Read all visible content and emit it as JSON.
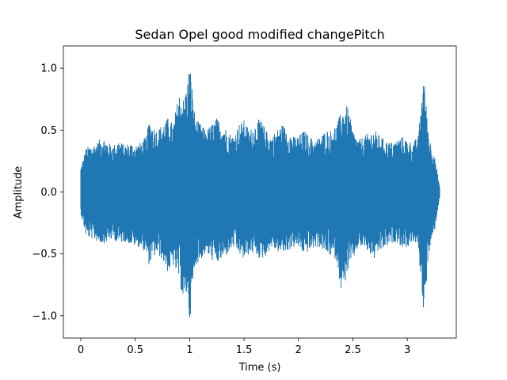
{
  "chart_data": {
    "type": "line",
    "title": "Sedan Opel good modified changePitch",
    "xlabel": "Time (s)",
    "ylabel": "Amplitude",
    "xlim": [
      -0.16,
      3.45
    ],
    "ylim": [
      -1.18,
      1.18
    ],
    "x_ticks": [
      0,
      0.5,
      1,
      1.5,
      2,
      2.5,
      3
    ],
    "x_tick_labels": [
      "0",
      "0.5",
      "1",
      "1.5",
      "2",
      "2.5",
      "3"
    ],
    "y_ticks": [
      -1.0,
      -0.5,
      0.0,
      0.5,
      1.0
    ],
    "y_tick_labels": [
      "−1.0",
      "−0.5",
      "0.0",
      "0.5",
      "1.0"
    ],
    "grid": false,
    "series": [
      {
        "color": "#1f77b4",
        "duration": 3.3,
        "envelope_t": [
          0.0,
          0.05,
          0.1,
          0.15,
          0.2,
          0.25,
          0.3,
          0.35,
          0.4,
          0.45,
          0.5,
          0.55,
          0.6,
          0.63,
          0.65,
          0.7,
          0.75,
          0.8,
          0.85,
          0.9,
          0.95,
          0.98,
          1.0,
          1.05,
          1.1,
          1.15,
          1.2,
          1.25,
          1.3,
          1.35,
          1.4,
          1.45,
          1.5,
          1.55,
          1.6,
          1.65,
          1.7,
          1.75,
          1.8,
          1.85,
          1.9,
          1.95,
          2.0,
          2.05,
          2.1,
          2.15,
          2.2,
          2.25,
          2.3,
          2.35,
          2.4,
          2.45,
          2.5,
          2.55,
          2.6,
          2.65,
          2.7,
          2.75,
          2.8,
          2.85,
          2.9,
          2.95,
          3.0,
          3.05,
          3.1,
          3.15,
          3.2,
          3.25,
          3.3
        ],
        "envelope_max": [
          0.2,
          0.36,
          0.38,
          0.4,
          0.45,
          0.4,
          0.38,
          0.42,
          0.38,
          0.4,
          0.38,
          0.4,
          0.45,
          0.58,
          0.55,
          0.5,
          0.55,
          0.6,
          0.55,
          0.8,
          0.75,
          0.9,
          1.06,
          0.6,
          0.55,
          0.5,
          0.55,
          0.6,
          0.55,
          0.5,
          0.45,
          0.55,
          0.58,
          0.5,
          0.55,
          0.6,
          0.5,
          0.45,
          0.5,
          0.55,
          0.5,
          0.45,
          0.45,
          0.5,
          0.45,
          0.42,
          0.45,
          0.5,
          0.5,
          0.55,
          0.66,
          0.7,
          0.5,
          0.42,
          0.45,
          0.48,
          0.5,
          0.45,
          0.42,
          0.4,
          0.42,
          0.45,
          0.42,
          0.4,
          0.45,
          0.95,
          0.45,
          0.3,
          0.03
        ],
        "envelope_min": [
          -0.18,
          -0.36,
          -0.38,
          -0.4,
          -0.42,
          -0.4,
          -0.38,
          -0.42,
          -0.4,
          -0.42,
          -0.44,
          -0.45,
          -0.5,
          -0.6,
          -0.55,
          -0.5,
          -0.55,
          -0.65,
          -0.6,
          -0.7,
          -0.92,
          -0.8,
          -1.06,
          -0.6,
          -0.55,
          -0.5,
          -0.55,
          -0.58,
          -0.55,
          -0.5,
          -0.45,
          -0.5,
          -0.55,
          -0.5,
          -0.5,
          -0.55,
          -0.52,
          -0.45,
          -0.48,
          -0.5,
          -0.48,
          -0.45,
          -0.45,
          -0.5,
          -0.48,
          -0.45,
          -0.45,
          -0.5,
          -0.52,
          -0.55,
          -0.84,
          -0.65,
          -0.55,
          -0.45,
          -0.45,
          -0.5,
          -0.55,
          -0.48,
          -0.45,
          -0.42,
          -0.4,
          -0.45,
          -0.45,
          -0.4,
          -0.45,
          -0.97,
          -0.5,
          -0.32,
          -0.03
        ]
      }
    ]
  }
}
